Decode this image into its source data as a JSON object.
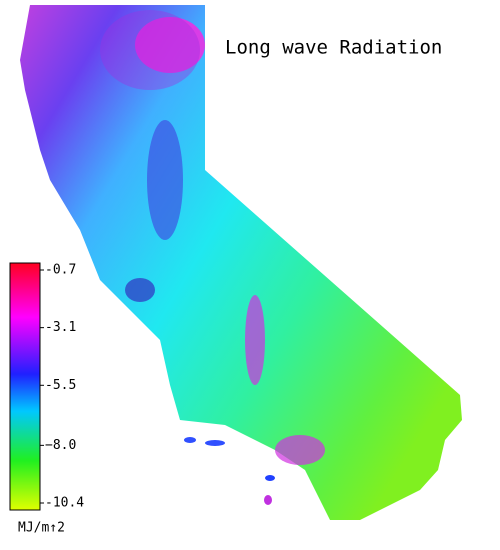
{
  "title": "Long wave Radiation",
  "colorbar": {
    "lim": [
      -10.4,
      -0.7
    ],
    "ticks": [
      -0.7,
      -3.1,
      -5.5,
      {
        "value": -8,
        "label": "−8.0"
      },
      -10.4
    ],
    "label": "MJ/m↑2"
  }
}
